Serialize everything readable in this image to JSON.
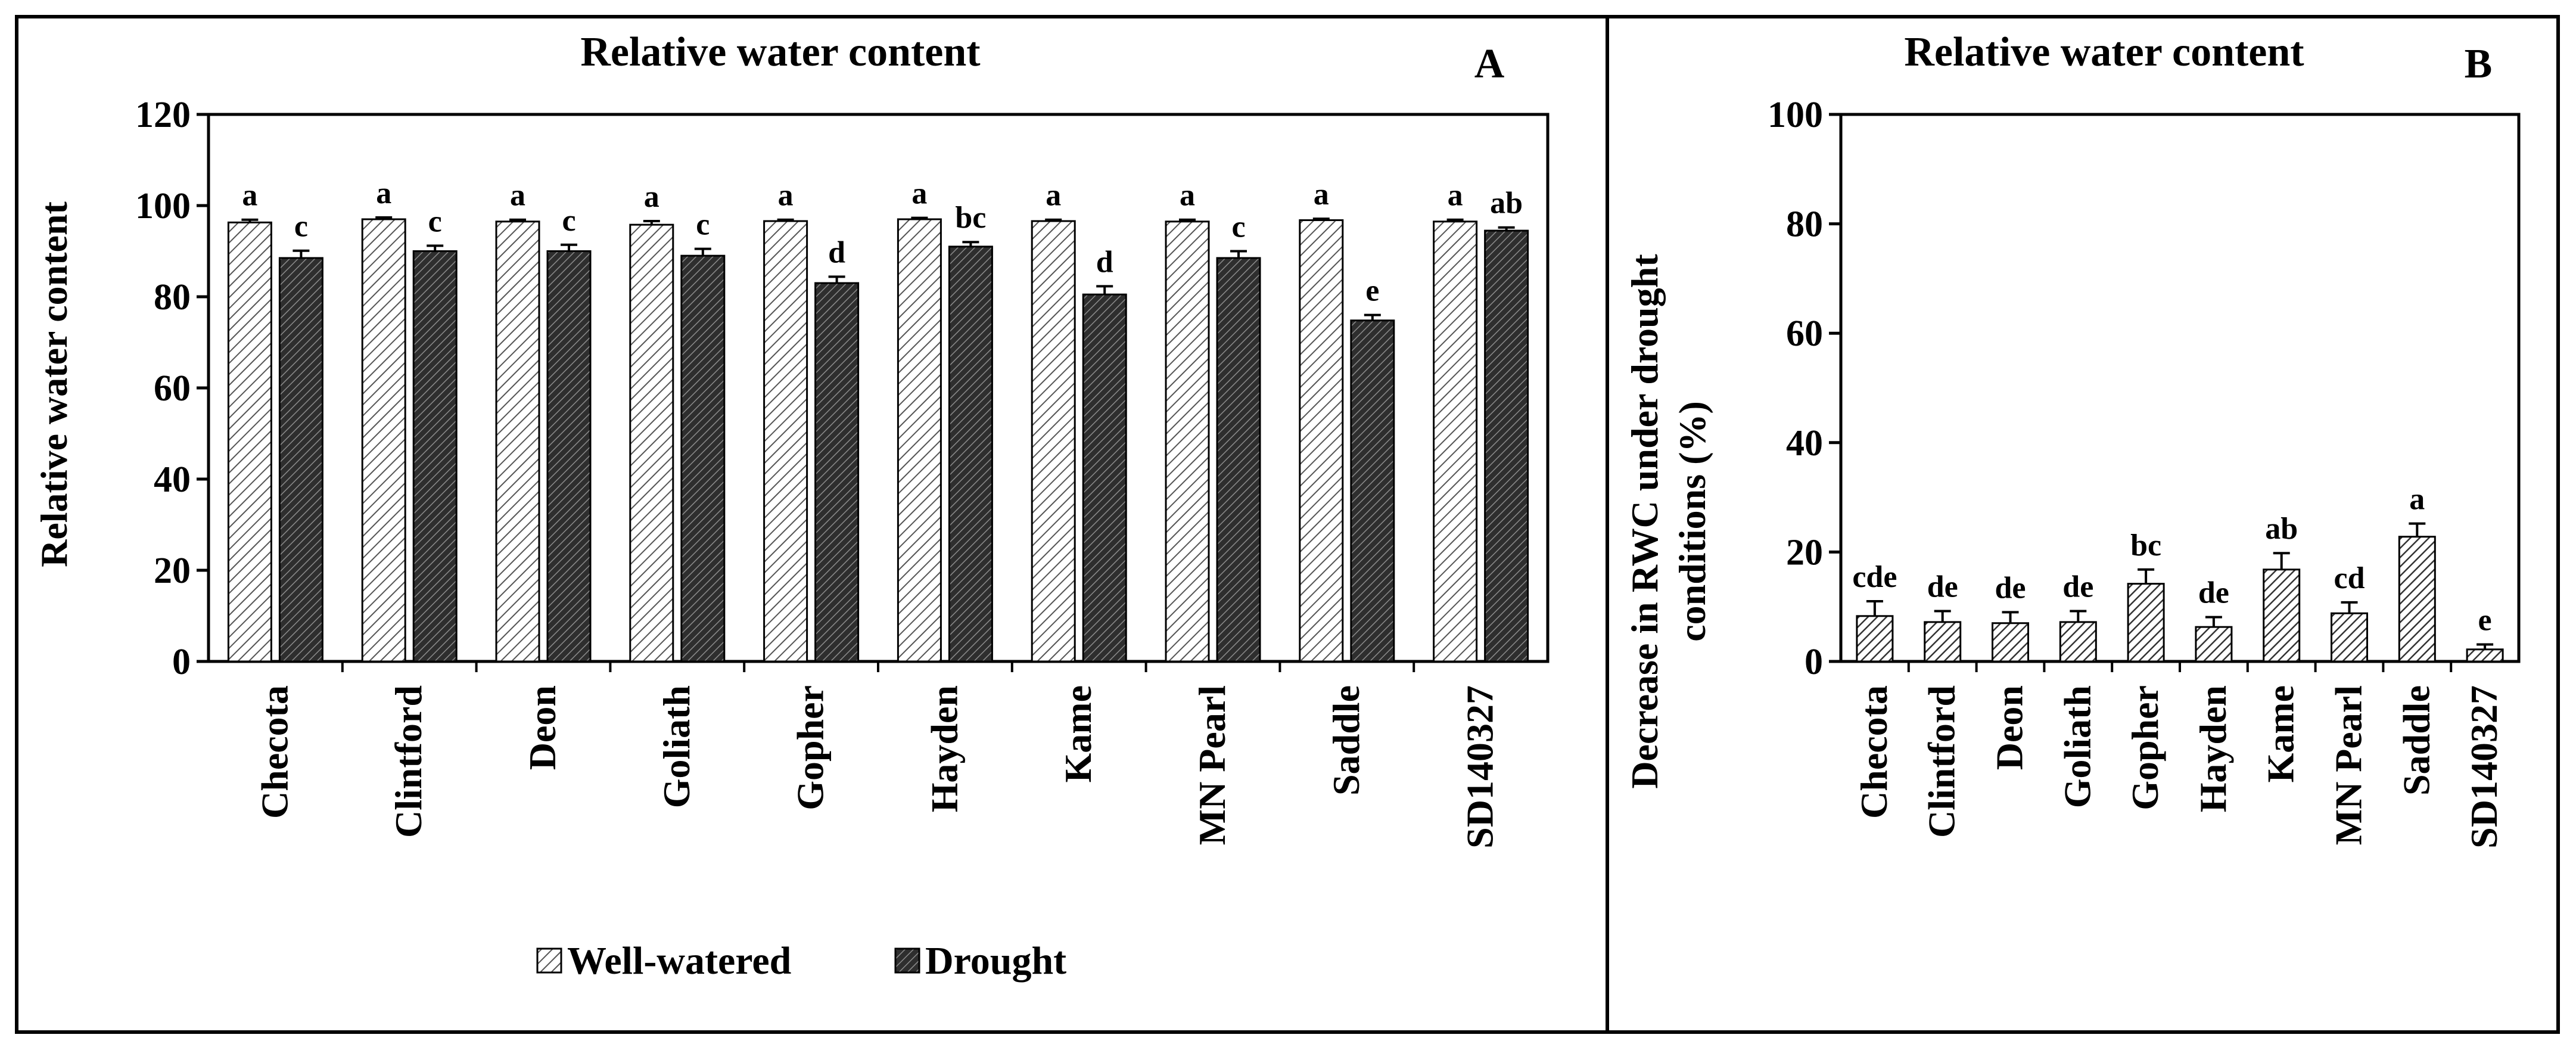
{
  "chart_data": [
    {
      "type": "bar",
      "panel": "A",
      "title": "Relative water content",
      "xlabel": "",
      "ylabel": "Relative water content",
      "ylim": [
        0,
        120
      ],
      "yticks": [
        0,
        20,
        40,
        60,
        80,
        100,
        120
      ],
      "categories": [
        "Checota",
        "Clintford",
        "Deon",
        "Goliath",
        "Gopher",
        "Hayden",
        "Kame",
        "MN Pearl",
        "Saddle",
        "SD140327"
      ],
      "series": [
        {
          "name": "Well-watered",
          "pattern": "light-hatch",
          "values": [
            96.3,
            97.0,
            96.5,
            95.8,
            96.6,
            97.0,
            96.6,
            96.5,
            96.8,
            96.5
          ],
          "errors": [
            0.6,
            0.4,
            0.4,
            0.8,
            0.3,
            0.3,
            0.3,
            0.4,
            0.3,
            0.4
          ],
          "letters": [
            "a",
            "a",
            "a",
            "a",
            "a",
            "a",
            "a",
            "a",
            "a",
            "a"
          ]
        },
        {
          "name": "Drought",
          "pattern": "dark-hatch",
          "values": [
            88.5,
            90.0,
            90.0,
            89.0,
            83.0,
            91.0,
            80.5,
            88.5,
            74.8,
            94.5
          ],
          "errors": [
            1.6,
            1.2,
            1.4,
            1.5,
            1.4,
            1.0,
            1.8,
            1.5,
            1.2,
            0.7
          ],
          "letters": [
            "c",
            "c",
            "c",
            "c",
            "d",
            "bc",
            "d",
            "c",
            "e",
            "ab"
          ]
        }
      ],
      "legend": [
        "Well-watered",
        "Drought"
      ],
      "legend_position": "bottom"
    },
    {
      "type": "bar",
      "panel": "B",
      "title": "Relative water content",
      "xlabel": "",
      "ylabel_lines": [
        "Decrease in RWC under drought",
        "conditions (%)"
      ],
      "ylim": [
        0,
        100
      ],
      "yticks": [
        0,
        20,
        40,
        60,
        80,
        100
      ],
      "categories": [
        "Checota",
        "Clintford",
        "Deon",
        "Goliath",
        "Gopher",
        "Hayden",
        "Kame",
        "MN Pearl",
        "Saddle",
        "SD140327"
      ],
      "series": [
        {
          "name": "Decrease in RWC",
          "pattern": "hatch",
          "values": [
            8.3,
            7.2,
            7.0,
            7.2,
            14.2,
            6.3,
            16.8,
            8.8,
            22.8,
            2.2
          ],
          "errors": [
            2.7,
            2.0,
            2.0,
            2.0,
            2.6,
            1.8,
            3.0,
            2.0,
            2.4,
            0.9
          ],
          "letters": [
            "cde",
            "de",
            "de",
            "de",
            "bc",
            "de",
            "ab",
            "cd",
            "a",
            "e"
          ]
        }
      ]
    }
  ]
}
